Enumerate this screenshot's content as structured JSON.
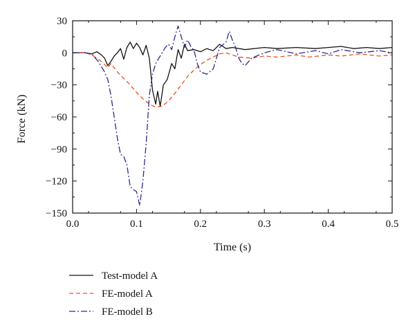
{
  "chart_data": {
    "type": "line",
    "title": "",
    "xlabel": "Time (s)",
    "ylabel": "Force (kN)",
    "xlim": [
      0,
      0.5
    ],
    "ylim": [
      -150,
      30
    ],
    "xticks": [
      0.0,
      0.1,
      0.2,
      0.3,
      0.4,
      0.5
    ],
    "xtick_labels": [
      "0.0",
      "0.1",
      "0.2",
      "0.3",
      "0.4",
      "0.5"
    ],
    "yticks": [
      30,
      0,
      -30,
      -60,
      -90,
      -120,
      -150
    ],
    "ytick_labels": [
      "30",
      "0",
      "−30",
      "−60",
      "−90",
      "−120",
      "−150"
    ],
    "grid": false,
    "legend_position": "below-left",
    "series": [
      {
        "name": "Test-model A",
        "color": "#111111",
        "dash": "solid",
        "points": [
          [
            0,
            0
          ],
          [
            0.02,
            0
          ],
          [
            0.03,
            -1
          ],
          [
            0.038,
            1
          ],
          [
            0.045,
            -2
          ],
          [
            0.05,
            -5
          ],
          [
            0.055,
            -12
          ],
          [
            0.06,
            -8
          ],
          [
            0.065,
            -3
          ],
          [
            0.07,
            0
          ],
          [
            0.075,
            4
          ],
          [
            0.08,
            -6
          ],
          [
            0.085,
            5
          ],
          [
            0.09,
            10
          ],
          [
            0.095,
            4
          ],
          [
            0.1,
            9
          ],
          [
            0.105,
            5
          ],
          [
            0.11,
            -2
          ],
          [
            0.115,
            7
          ],
          [
            0.12,
            -5
          ],
          [
            0.125,
            -35
          ],
          [
            0.13,
            -48
          ],
          [
            0.133,
            -36
          ],
          [
            0.137,
            -50
          ],
          [
            0.142,
            -30
          ],
          [
            0.148,
            -25
          ],
          [
            0.155,
            -10
          ],
          [
            0.16,
            -15
          ],
          [
            0.165,
            3
          ],
          [
            0.17,
            -5
          ],
          [
            0.175,
            8
          ],
          [
            0.18,
            2
          ],
          [
            0.19,
            3
          ],
          [
            0.2,
            1
          ],
          [
            0.21,
            4
          ],
          [
            0.22,
            2
          ],
          [
            0.23,
            8
          ],
          [
            0.24,
            4
          ],
          [
            0.25,
            5
          ],
          [
            0.27,
            3
          ],
          [
            0.3,
            5
          ],
          [
            0.32,
            4
          ],
          [
            0.35,
            5
          ],
          [
            0.38,
            4
          ],
          [
            0.4,
            5
          ],
          [
            0.42,
            6
          ],
          [
            0.44,
            4
          ],
          [
            0.46,
            5
          ],
          [
            0.48,
            4
          ],
          [
            0.5,
            5
          ]
        ]
      },
      {
        "name": "FE-model A",
        "color": "#e8501e",
        "dash": "dashed",
        "points": [
          [
            0,
            0
          ],
          [
            0.02,
            0
          ],
          [
            0.03,
            -2
          ],
          [
            0.045,
            -8
          ],
          [
            0.055,
            -14
          ],
          [
            0.06,
            -10
          ],
          [
            0.07,
            -18
          ],
          [
            0.08,
            -24
          ],
          [
            0.09,
            -30
          ],
          [
            0.1,
            -37
          ],
          [
            0.11,
            -43
          ],
          [
            0.12,
            -48
          ],
          [
            0.13,
            -51
          ],
          [
            0.14,
            -50
          ],
          [
            0.15,
            -45
          ],
          [
            0.16,
            -38
          ],
          [
            0.17,
            -30
          ],
          [
            0.18,
            -22
          ],
          [
            0.19,
            -16
          ],
          [
            0.2,
            -11
          ],
          [
            0.21,
            -7
          ],
          [
            0.22,
            -4
          ],
          [
            0.23,
            -1
          ],
          [
            0.24,
            0
          ],
          [
            0.25,
            -2
          ],
          [
            0.26,
            -4
          ],
          [
            0.28,
            -5
          ],
          [
            0.3,
            -3
          ],
          [
            0.32,
            -4
          ],
          [
            0.35,
            -2
          ],
          [
            0.37,
            -4
          ],
          [
            0.4,
            -2
          ],
          [
            0.42,
            -3
          ],
          [
            0.45,
            -1
          ],
          [
            0.48,
            -3
          ],
          [
            0.5,
            -2
          ]
        ]
      },
      {
        "name": "FE-model B",
        "color": "#2a2a8c",
        "dash": "dashdot",
        "points": [
          [
            0,
            0
          ],
          [
            0.02,
            0
          ],
          [
            0.03,
            -1
          ],
          [
            0.04,
            -8
          ],
          [
            0.05,
            -18
          ],
          [
            0.055,
            -25
          ],
          [
            0.06,
            -40
          ],
          [
            0.065,
            -60
          ],
          [
            0.07,
            -80
          ],
          [
            0.075,
            -95
          ],
          [
            0.08,
            -97
          ],
          [
            0.085,
            -105
          ],
          [
            0.09,
            -125
          ],
          [
            0.095,
            -128
          ],
          [
            0.1,
            -130
          ],
          [
            0.105,
            -143
          ],
          [
            0.11,
            -120
          ],
          [
            0.115,
            -85
          ],
          [
            0.12,
            -40
          ],
          [
            0.125,
            -20
          ],
          [
            0.13,
            -10
          ],
          [
            0.135,
            -5
          ],
          [
            0.14,
            0
          ],
          [
            0.145,
            5
          ],
          [
            0.15,
            8
          ],
          [
            0.155,
            3
          ],
          [
            0.16,
            15
          ],
          [
            0.165,
            25
          ],
          [
            0.17,
            15
          ],
          [
            0.175,
            5
          ],
          [
            0.18,
            12
          ],
          [
            0.185,
            6
          ],
          [
            0.19,
            2
          ],
          [
            0.195,
            -10
          ],
          [
            0.2,
            -18
          ],
          [
            0.21,
            -20
          ],
          [
            0.22,
            -15
          ],
          [
            0.23,
            5
          ],
          [
            0.24,
            10
          ],
          [
            0.245,
            20
          ],
          [
            0.25,
            12
          ],
          [
            0.255,
            5
          ],
          [
            0.26,
            -5
          ],
          [
            0.265,
            -10
          ],
          [
            0.27,
            -12
          ],
          [
            0.28,
            -5
          ],
          [
            0.3,
            0
          ],
          [
            0.32,
            3
          ],
          [
            0.35,
            -1
          ],
          [
            0.38,
            2
          ],
          [
            0.4,
            -1
          ],
          [
            0.42,
            3
          ],
          [
            0.45,
            0
          ],
          [
            0.48,
            2
          ],
          [
            0.5,
            0
          ]
        ]
      }
    ]
  }
}
